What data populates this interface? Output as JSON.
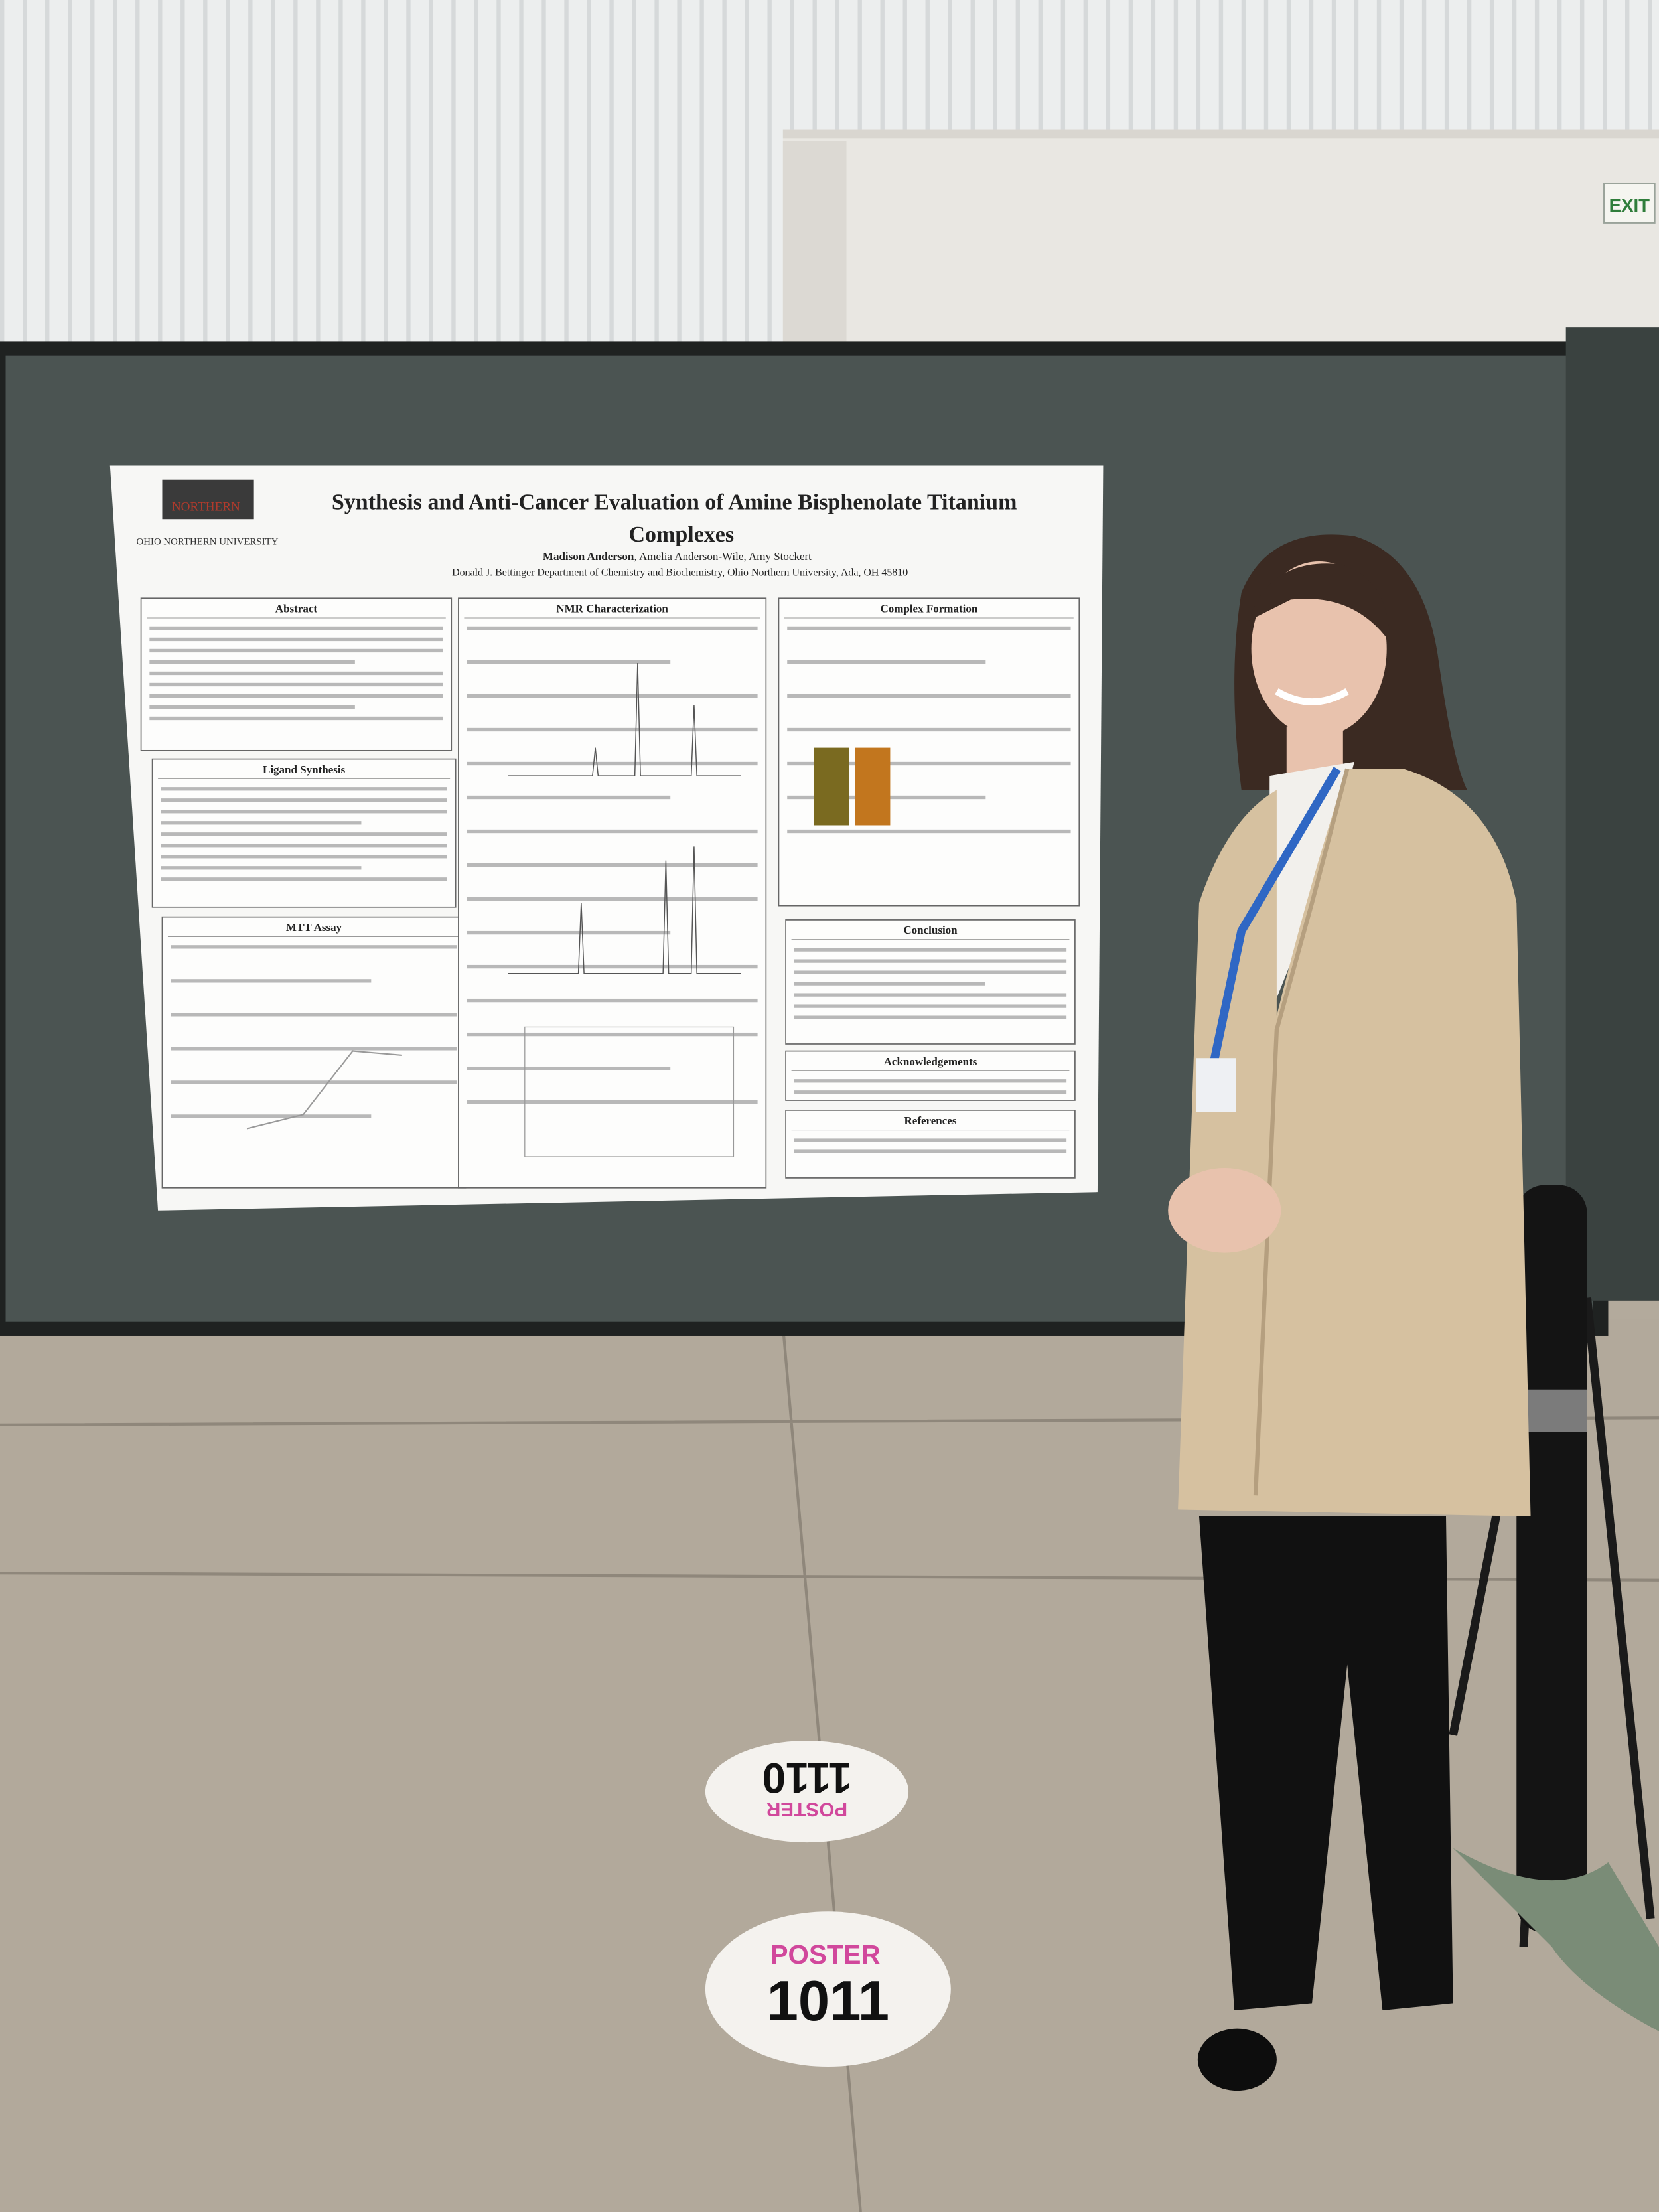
{
  "exit_sign": "EXIT",
  "poster": {
    "logo": {
      "name": "NORTHERN",
      "university": "OHIO NORTHERN UNIVERSITY"
    },
    "title_lines": [
      "Synthesis and Anti-Cancer Evaluation of Amine Bisphenolate Titanium",
      "Complexes"
    ],
    "lead_author": "Madison Anderson",
    "coauthors": ", Amelia Anderson-Wile, Amy Stockert",
    "affiliation": "Donald J. Bettinger Department of Chemistry and Biochemistry, Ohio Northern University, Ada, OH 45810",
    "sections": [
      "Abstract",
      "Ligand Synthesis",
      "MTT Assay",
      "NMR Characterization",
      "Complex Formation",
      "Conclusion",
      "Acknowledgements",
      "References"
    ]
  },
  "floor_markers": [
    {
      "label": "POSTER",
      "number": "1110"
    },
    {
      "label": "POSTER",
      "number": "1011"
    }
  ]
}
